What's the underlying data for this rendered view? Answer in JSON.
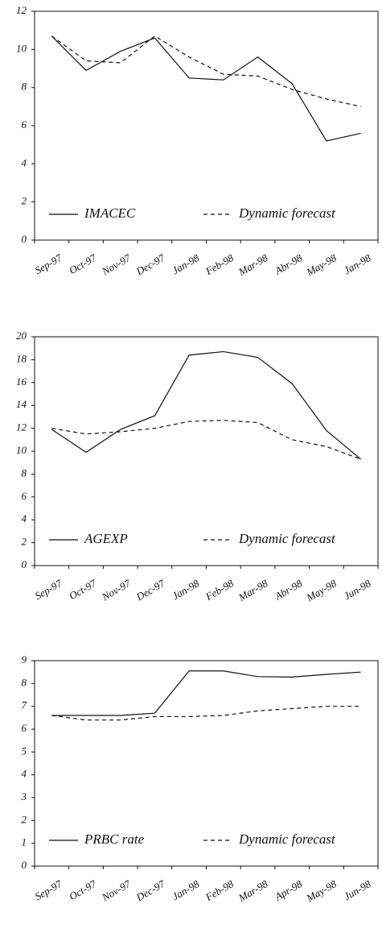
{
  "chart_data": [
    {
      "type": "line",
      "categories": [
        "Sep-97",
        "Oct-97",
        "Nov-97",
        "Dec-97",
        "Jan-98",
        "Feb-98",
        "Mar-98",
        "Abr-98",
        "May-98",
        "Jan-98"
      ],
      "series": [
        {
          "name": "IMACEC",
          "color": "#111111",
          "linestyle": "solid",
          "values": [
            10.7,
            8.9,
            9.9,
            10.6,
            8.5,
            8.4,
            9.6,
            8.2,
            5.2,
            5.6
          ]
        },
        {
          "name": "Dynamic forecast",
          "color": "#111111",
          "linestyle": "dashed",
          "values": [
            10.7,
            9.4,
            9.3,
            10.7,
            9.6,
            8.7,
            8.6,
            7.9,
            7.4,
            7.0
          ]
        }
      ],
      "ylim": [
        0,
        12
      ],
      "yticks": [
        0,
        2,
        4,
        6,
        8,
        10,
        12
      ]
    },
    {
      "type": "line",
      "categories": [
        "Sep-97",
        "Oct-97",
        "Nov-97",
        "Dec-97",
        "Jan-98",
        "Feb-98",
        "Mar-98",
        "Abr-98",
        "May-98",
        "Jun-98"
      ],
      "series": [
        {
          "name": "AGEXP",
          "color": "#111111",
          "linestyle": "solid",
          "values": [
            11.9,
            9.9,
            11.9,
            13.1,
            18.4,
            18.7,
            18.2,
            15.9,
            11.8,
            9.3
          ]
        },
        {
          "name": "Dynamic forecast",
          "color": "#111111",
          "linestyle": "dashed",
          "values": [
            12.0,
            11.5,
            11.7,
            12.0,
            12.6,
            12.7,
            12.5,
            11.0,
            10.4,
            9.3
          ]
        }
      ],
      "ylim": [
        0,
        20
      ],
      "yticks": [
        0,
        2,
        4,
        6,
        8,
        10,
        12,
        14,
        16,
        18,
        20
      ]
    },
    {
      "type": "line",
      "categories": [
        "Sep-97",
        "Oct-97",
        "Nov-97",
        "Dec-97",
        "Jan-98",
        "Feb-98",
        "Mar-98",
        "Apr-98",
        "May-98",
        "Jun-98"
      ],
      "series": [
        {
          "name": "PRBC rate",
          "color": "#111111",
          "linestyle": "solid",
          "values": [
            6.6,
            6.6,
            6.6,
            6.7,
            8.55,
            8.55,
            8.3,
            8.28,
            8.4,
            8.5
          ]
        },
        {
          "name": "Dynamic forecast",
          "color": "#111111",
          "linestyle": "dashed",
          "values": [
            6.6,
            6.4,
            6.4,
            6.55,
            6.55,
            6.6,
            6.8,
            6.9,
            7.0,
            7.0
          ]
        }
      ],
      "ylim": [
        0,
        9
      ],
      "yticks": [
        0,
        1,
        2,
        3,
        4,
        5,
        6,
        7,
        8,
        9
      ]
    }
  ]
}
